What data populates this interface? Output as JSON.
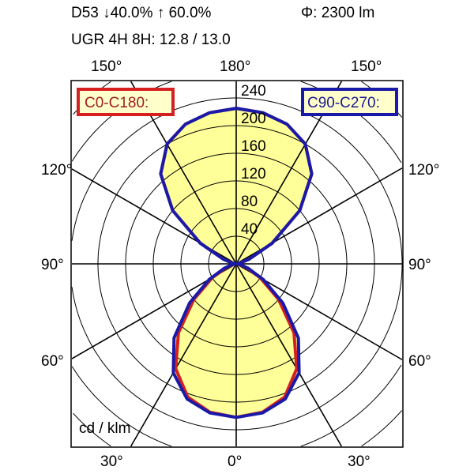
{
  "header": {
    "line1_left": "D53 ↓40.0% ↑ 60.0%",
    "line1_right": "Φ: 2300 lm",
    "line2": "UGR 4H 8H: 12.8 / 13.0"
  },
  "chart_data": {
    "type": "polar",
    "unit_label": "cd / klm",
    "radial_ticks": [
      40,
      80,
      120,
      160,
      200,
      240
    ],
    "radial_max": 240,
    "angle_labels": {
      "top": [
        "150°",
        "180°",
        "150°"
      ],
      "middle_upper": [
        "120°",
        "120°"
      ],
      "middle": [
        "90°",
        "90°"
      ],
      "middle_lower": [
        "60°",
        "60°"
      ],
      "bottom": [
        "30°",
        "0°",
        "30°"
      ]
    },
    "angles": [
      0,
      10,
      20,
      30,
      40,
      50,
      60,
      70,
      80,
      90,
      100,
      110,
      120,
      130,
      140,
      150,
      160,
      170,
      180
    ],
    "series": [
      {
        "name": "C0-C180:",
        "color": "#d42020",
        "values": [
          222,
          218,
          205,
          175,
          130,
          80,
          40,
          15,
          5,
          0,
          5,
          20,
          60,
          120,
          170,
          200,
          215,
          222,
          225
        ]
      },
      {
        "name": "C90-C270:",
        "color": "#1a1aa8",
        "values": [
          222,
          219,
          208,
          182,
          140,
          88,
          45,
          18,
          6,
          0,
          5,
          20,
          60,
          120,
          170,
          200,
          215,
          222,
          225
        ]
      }
    ],
    "fill_color": "#ffff99",
    "grid": true
  }
}
